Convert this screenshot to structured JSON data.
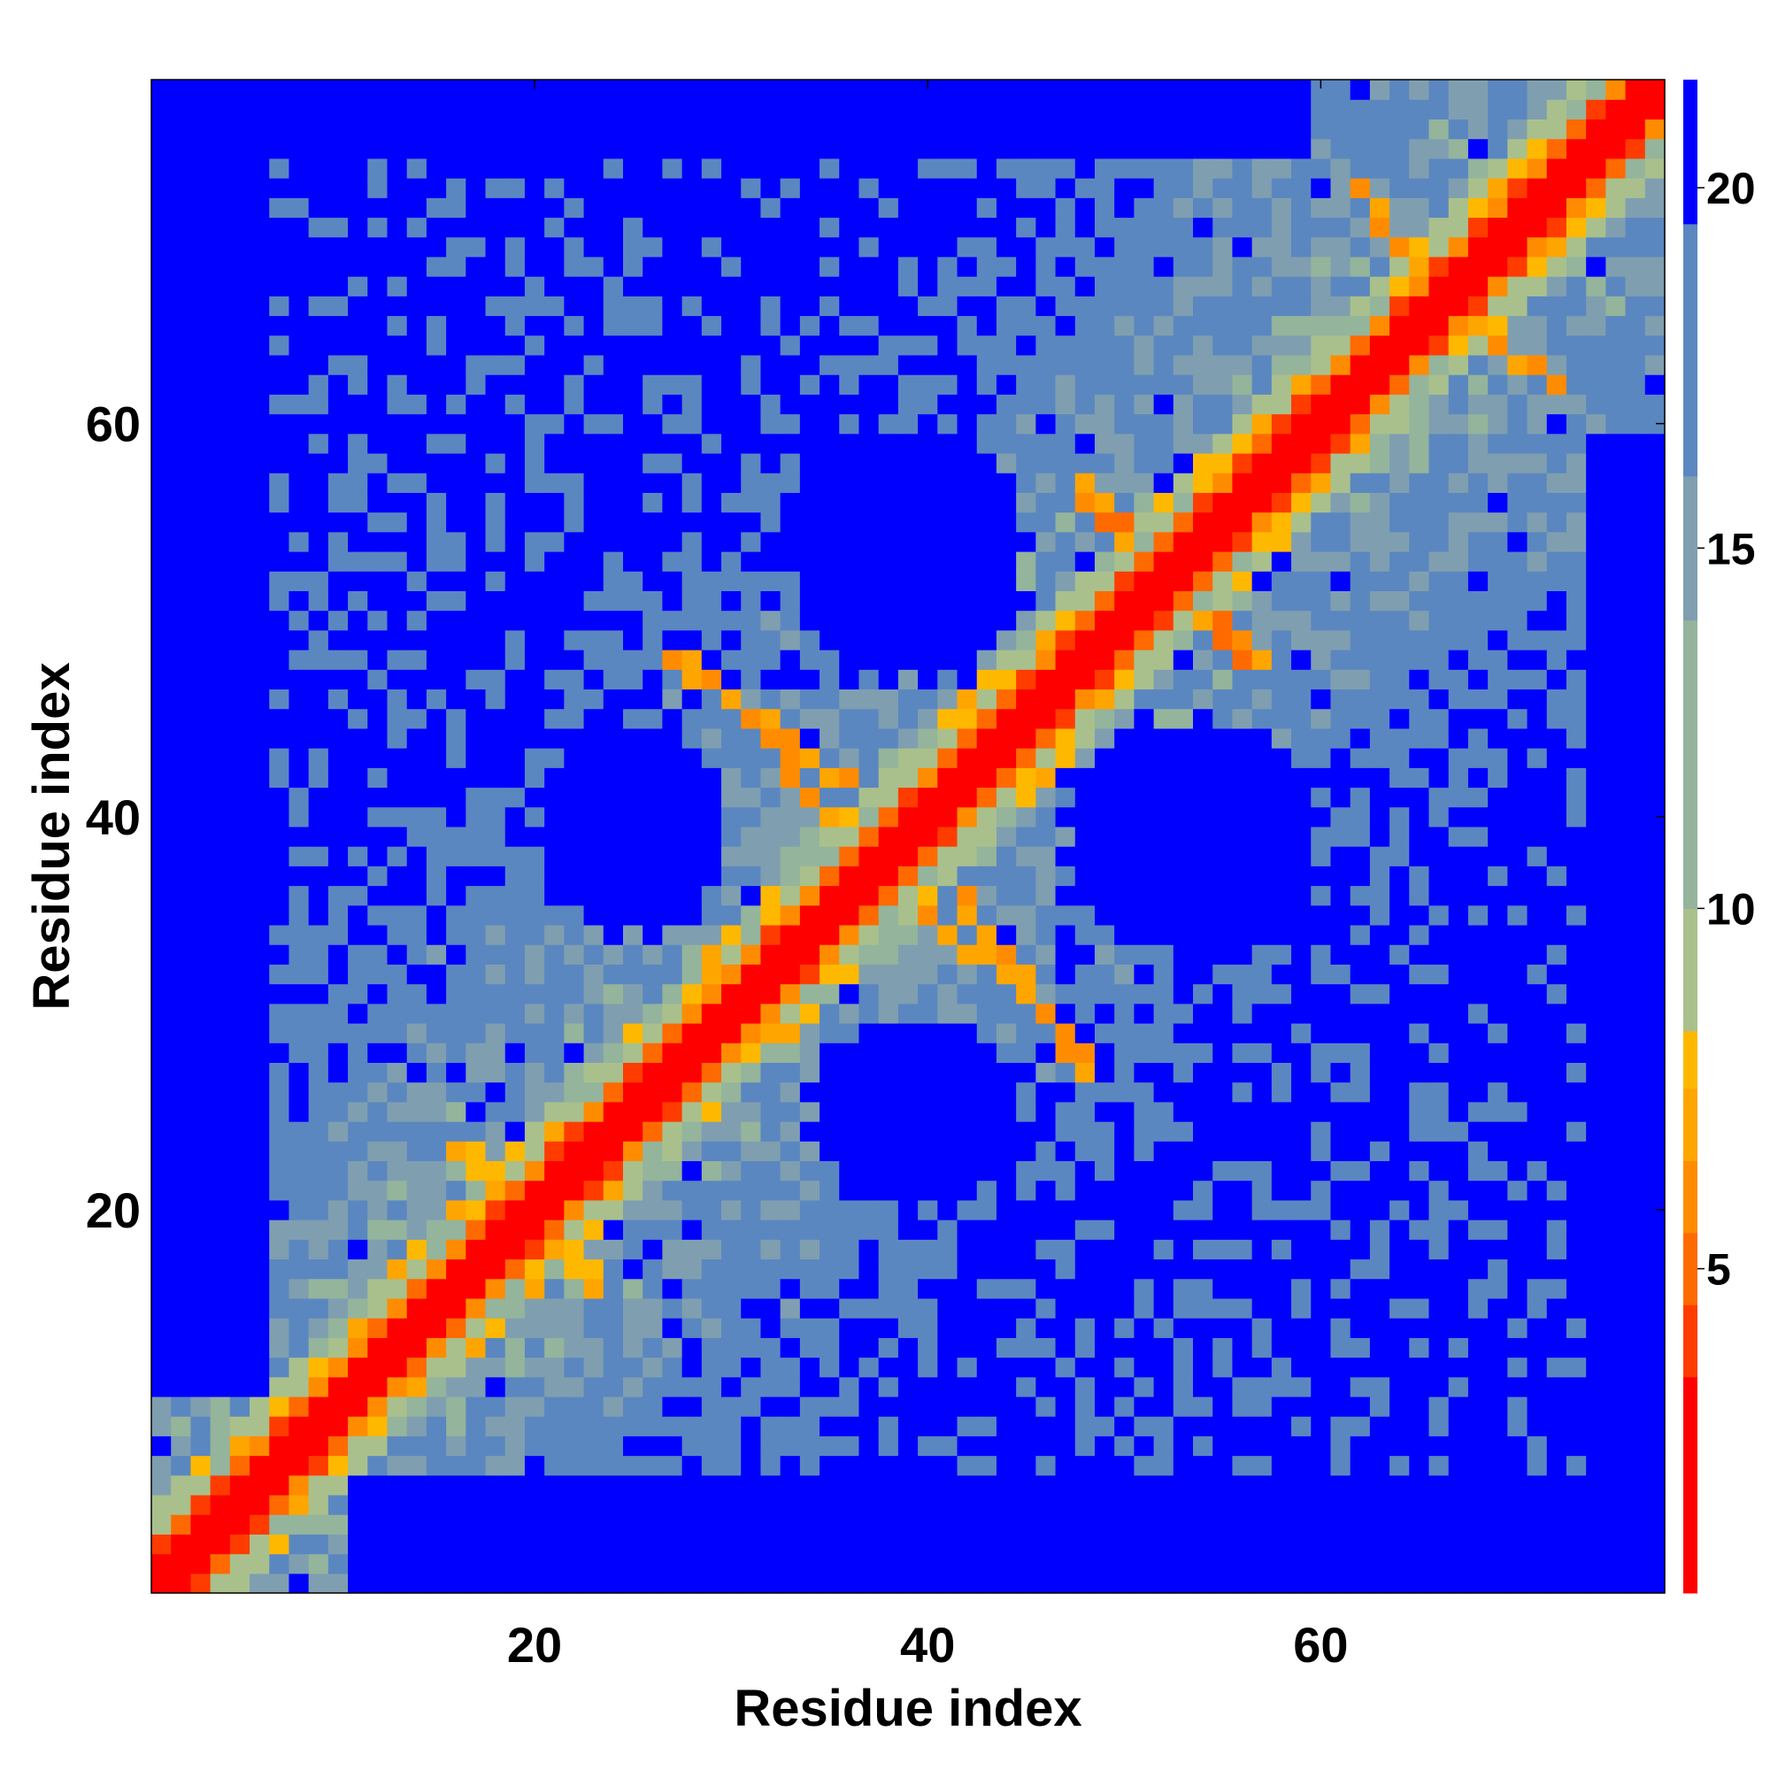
{
  "chart_data": {
    "type": "heatmap",
    "title": "",
    "xlabel": "Residue index",
    "ylabel": "Residue index",
    "n_residues": 77,
    "xlim": [
      1,
      77
    ],
    "ylim": [
      1,
      77
    ],
    "x_ticks": [
      20,
      40,
      60
    ],
    "y_ticks": [
      20,
      40,
      60
    ],
    "colorbar": {
      "ticks": [
        5,
        10,
        15,
        20
      ],
      "range": [
        0.5,
        21.5
      ],
      "bands": [
        {
          "from": 0.5,
          "to": 3.5,
          "color": "#ff0000"
        },
        {
          "from": 3.5,
          "to": 4.5,
          "color": "#ff3c00"
        },
        {
          "from": 4.5,
          "to": 5.5,
          "color": "#ff6a00"
        },
        {
          "from": 5.5,
          "to": 6.5,
          "color": "#ff8c00"
        },
        {
          "from": 6.5,
          "to": 7.5,
          "color": "#ffa500"
        },
        {
          "from": 7.5,
          "to": 8.3,
          "color": "#ffb800"
        },
        {
          "from": 8.3,
          "to": 10.0,
          "color": "#a9c08c"
        },
        {
          "from": 10.0,
          "to": 14.0,
          "color": "#94b49c"
        },
        {
          "from": 14.0,
          "to": 16.0,
          "color": "#7f9fb0"
        },
        {
          "from": 16.0,
          "to": 19.5,
          "color": "#5b87c0"
        },
        {
          "from": 19.5,
          "to": 21.5,
          "color": "#0000ff"
        }
      ]
    },
    "value_description": "Pairwise residue distance map (symmetric); diagonal ~1-3, near-diagonal 3-8, contact regions 8-19, far > 20",
    "contact_features": [
      {
        "i_range": [
          28,
          37
        ],
        "j_range": [
          48,
          38
        ],
        "value": 6
      },
      {
        "i_range": [
          41,
          48
        ],
        "j_range": [
          37,
          27
        ],
        "value": 6
      },
      {
        "i_range": [
          48,
          53
        ],
        "j_range": [
          56,
          53
        ],
        "value": 5
      },
      {
        "i_range": [
          53,
          57
        ],
        "j_range": [
          50,
          48
        ],
        "value": 6
      },
      {
        "i_range": [
          63,
          66
        ],
        "j_range": [
          64,
          62
        ],
        "value": 7
      },
      {
        "i_range": [
          62,
          64
        ],
        "j_range": [
          72,
          68
        ],
        "value": 6
      },
      {
        "i_range": [
          17,
          20
        ],
        "j_range": [
          23,
          19
        ],
        "value": 7
      },
      {
        "i_range": [
          19,
          23
        ],
        "j_range": [
          18,
          16
        ],
        "value": 7
      }
    ],
    "blank_regions": [
      {
        "center": [
          39,
          54
        ],
        "radius": 6
      },
      {
        "center": [
          53,
          39
        ],
        "radius": 6
      },
      {
        "center": [
          39,
          25
        ],
        "radius": 5
      },
      {
        "center": [
          25,
          40
        ],
        "radius": 5
      }
    ]
  }
}
